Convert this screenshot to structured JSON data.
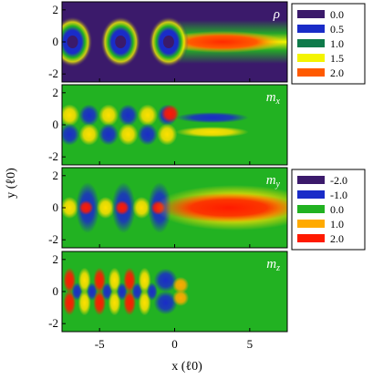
{
  "chart_data": {
    "type": "heatmap",
    "xlabel": "x (ℓ0)",
    "ylabel": "y (ℓ0)",
    "xlim": [
      -7.5,
      7.5
    ],
    "ylim": [
      -2.5,
      2.5
    ],
    "x_ticks": [
      "-5",
      "0",
      "5"
    ],
    "x_tick_values": [
      -5,
      0,
      5
    ],
    "y_ticks": [
      "-2",
      "0",
      "2"
    ],
    "y_tick_values": [
      -2,
      0,
      2
    ],
    "panels": [
      {
        "label": "ρ",
        "field": "rho",
        "colormap": "density"
      },
      {
        "label": "m",
        "label_sub": "x",
        "field": "mx",
        "colormap": "spin"
      },
      {
        "label": "m",
        "label_sub": "y",
        "field": "my",
        "colormap": "spin"
      },
      {
        "label": "m",
        "label_sub": "z",
        "field": "mz",
        "colormap": "spin"
      }
    ],
    "legends": [
      {
        "name": "density",
        "entries": [
          {
            "label": "0.0",
            "value": 0.0,
            "color": "#3b1a6b"
          },
          {
            "label": "0.5",
            "value": 0.5,
            "color": "#1a2cc8"
          },
          {
            "label": "1.0",
            "value": 1.0,
            "color": "#0e7a4a"
          },
          {
            "label": "1.5",
            "value": 1.5,
            "color": "#f4f400"
          },
          {
            "label": "2.0",
            "value": 2.0,
            "color": "#ff5a00"
          }
        ]
      },
      {
        "name": "spin",
        "entries": [
          {
            "label": "-2.0",
            "value": -2.0,
            "color": "#3b1a6b"
          },
          {
            "label": "-1.0",
            "value": -1.0,
            "color": "#1a2cc8"
          },
          {
            "label": "0.0",
            "value": 0.0,
            "color": "#22b222"
          },
          {
            "label": "1.0",
            "value": 1.0,
            "color": "#ffaa00"
          },
          {
            "label": "2.0",
            "value": 2.0,
            "color": "#ff1a00"
          }
        ]
      }
    ],
    "grid": false,
    "legend_placement": "right"
  }
}
